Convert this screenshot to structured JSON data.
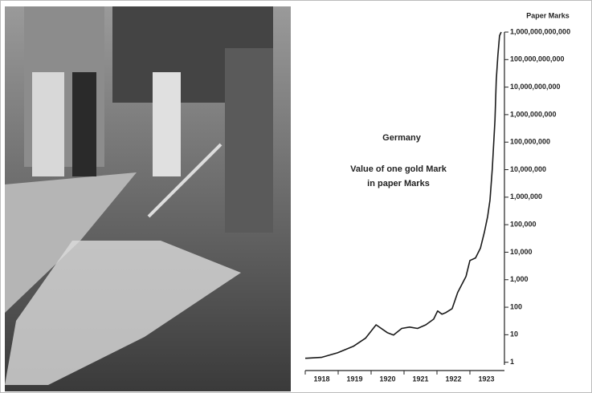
{
  "chart_data": {
    "type": "line",
    "title": "Germany",
    "annotations": [
      "Value of one gold Mark",
      "in paper Marks"
    ],
    "y_label": "Paper Marks",
    "log_scale": true,
    "color": "#1a1a1a",
    "x": [
      1918.0,
      1918.49,
      1918.98,
      1919.46,
      1919.83,
      1920.15,
      1920.49,
      1920.68,
      1920.93,
      1921.17,
      1921.41,
      1921.66,
      1921.9,
      1922.02,
      1922.15,
      1922.27,
      1922.46,
      1922.63,
      1922.88,
      1923.0,
      1923.17,
      1923.32,
      1923.44,
      1923.54,
      1923.61,
      1923.68,
      1923.76,
      1923.8,
      1923.85,
      1923.9,
      1923.95
    ],
    "values": [
      1.4,
      1.5,
      2.2,
      3.8,
      7.5,
      23,
      12,
      9.8,
      17,
      19,
      17,
      23,
      37,
      73,
      56,
      64,
      89,
      345,
      1300,
      5000,
      6200,
      14000,
      53000,
      200000,
      780000,
      11000000,
      630000000,
      18000000000,
      140000000000,
      740000000000,
      1000000000000
    ],
    "xlim": [
      1918,
      1924
    ],
    "xticks": [
      1918,
      1919,
      1920,
      1921,
      1922,
      1923
    ],
    "ylim": [
      0.5,
      1000000000000
    ],
    "yticks": [
      1,
      10,
      100,
      {
        "value": 1000,
        "label": "1,000"
      },
      {
        "value": 10000,
        "label": "10,000"
      },
      {
        "value": 100000,
        "label": "100,000"
      },
      {
        "value": 1000000,
        "label": "1,000,000"
      },
      {
        "value": 10000000,
        "label": "10,000,000"
      },
      {
        "value": 100000000,
        "label": "100,000,000"
      },
      {
        "value": 1000000000,
        "label": "1,000,000,000"
      },
      {
        "value": 10000000000,
        "label": "10,000,000,000"
      },
      {
        "value": 100000000000,
        "label": "100,000,000,000"
      },
      {
        "value": 1000000000000,
        "label": "1,000,000,000,000"
      }
    ]
  }
}
